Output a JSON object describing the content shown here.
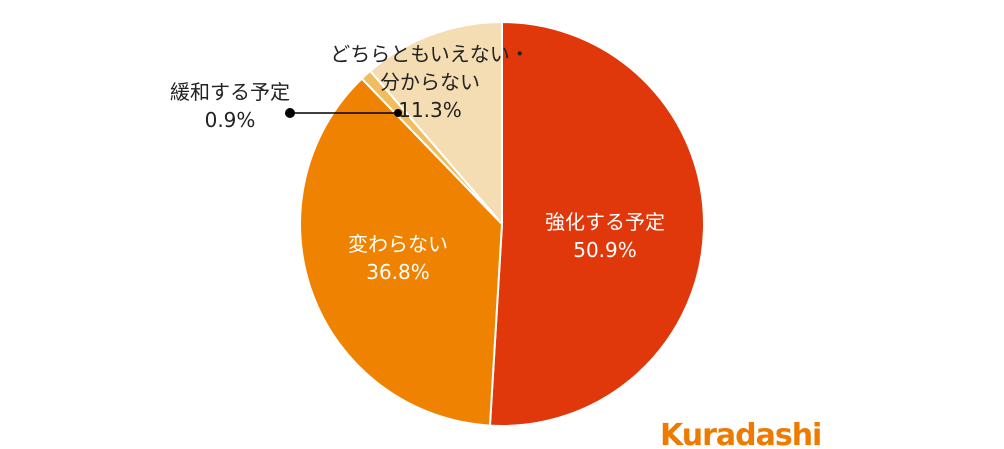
{
  "chart_data": {
    "type": "pie",
    "categories": [
      "強化する予定",
      "変わらない",
      "緩和する予定",
      "どちらともいえない・\n分からない"
    ],
    "values": [
      50.9,
      36.8,
      0.9,
      11.3
    ],
    "value_labels": [
      "50.9%",
      "36.8%",
      "0.9%",
      "11.3%"
    ],
    "colors": [
      "#e0380b",
      "#ef8200",
      "#f2bd5e",
      "#f4ddb2"
    ]
  },
  "logo": "Kuradashi"
}
